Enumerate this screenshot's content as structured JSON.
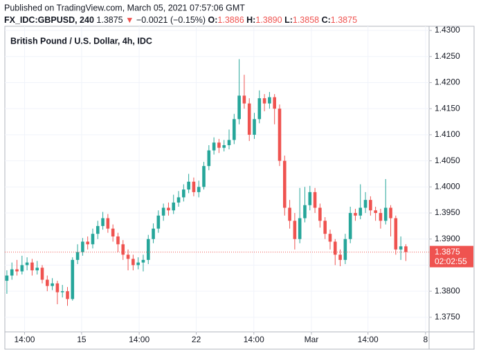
{
  "header": {
    "published": "Published on TradingView.com, March 05, 2021 07:57:06 GMT",
    "symbol": "FX_IDC:GBPUSD, 240",
    "last": "1.3875",
    "arrow": "▼",
    "change": "−0.0021 (−0.15%)",
    "o_label": "O:",
    "o": "1.3886",
    "h_label": "H:",
    "h": "1.3890",
    "l_label": "L:",
    "l": "1.3858",
    "c_label": "C:",
    "c": "1.3875"
  },
  "chart_data": {
    "type": "candlestick",
    "title": "British Pound / U.S. Dollar, 4h, IDC",
    "up_color": "#26a69a",
    "down_color": "#ef5350",
    "xlim": [
      -0.4,
      83.6
    ],
    "xticks": [
      {
        "value": 3.5,
        "label": "14:00"
      },
      {
        "value": 14.8,
        "label": "15"
      },
      {
        "value": 26.2,
        "label": "14:00"
      },
      {
        "value": 37.5,
        "label": "22"
      },
      {
        "value": 48.9,
        "label": "14:00"
      },
      {
        "value": 60.3,
        "label": "Mar"
      },
      {
        "value": 71.5,
        "label": "14:00"
      },
      {
        "value": 82.9,
        "label": "8"
      }
    ],
    "ylim": [
      1.3722,
      1.4308
    ],
    "yticks": [
      {
        "value": 1.375,
        "label": "1.3750"
      },
      {
        "value": 1.38,
        "label": "1.3800"
      },
      {
        "value": 1.385,
        "label": "1.3850"
      },
      {
        "value": 1.39,
        "label": "1.3900"
      },
      {
        "value": 1.395,
        "label": "1.3950"
      },
      {
        "value": 1.4,
        "label": "1.4000"
      },
      {
        "value": 1.405,
        "label": "1.4050"
      },
      {
        "value": 1.41,
        "label": "1.4100"
      },
      {
        "value": 1.415,
        "label": "1.4150"
      },
      {
        "value": 1.42,
        "label": "1.4200"
      },
      {
        "value": 1.425,
        "label": "1.4250"
      },
      {
        "value": 1.43,
        "label": "1.4300"
      }
    ],
    "grid": true,
    "current_price": {
      "value": 1.3875,
      "label": "1.3875",
      "countdown": "02:02:55",
      "color": "#ef5350"
    },
    "open": [
      1.382,
      1.383,
      1.3842,
      1.3838,
      1.385,
      1.3855,
      1.384,
      1.3845,
      1.3822,
      1.381,
      1.3815,
      1.3798,
      1.38,
      1.3785,
      1.386,
      1.3875,
      1.3895,
      1.389,
      1.391,
      1.3925,
      1.394,
      1.392,
      1.3905,
      1.389,
      1.387,
      1.3862,
      1.385,
      1.3855,
      1.386,
      1.39,
      1.392,
      1.3945,
      1.396,
      1.3955,
      1.397,
      1.398,
      1.3995,
      1.401,
      1.399,
      1.4,
      1.404,
      1.407,
      1.4085,
      1.4075,
      1.408,
      1.409,
      1.413,
      1.4175,
      1.416,
      1.41,
      1.413,
      1.417,
      1.416,
      1.4172,
      1.415,
      1.405,
      1.396,
      1.3935,
      1.39,
      1.394,
      1.3965,
      1.399,
      1.396,
      1.3935,
      1.391,
      1.3895,
      1.387,
      1.386,
      1.39,
      1.395,
      1.3945,
      1.396,
      1.3975,
      1.3955,
      1.395,
      1.3935,
      1.396,
      1.394,
      1.388,
      1.3886
    ],
    "high": [
      1.384,
      1.3855,
      1.386,
      1.3868,
      1.3865,
      1.3862,
      1.3858,
      1.385,
      1.383,
      1.3825,
      1.382,
      1.3812,
      1.3808,
      1.3865,
      1.389,
      1.3902,
      1.3905,
      1.392,
      1.3935,
      1.3952,
      1.3948,
      1.3928,
      1.3912,
      1.3898,
      1.388,
      1.387,
      1.3865,
      1.387,
      1.3908,
      1.393,
      1.3955,
      1.3968,
      1.397,
      1.3985,
      1.3992,
      1.4005,
      1.4025,
      1.4018,
      1.4012,
      1.4048,
      1.408,
      1.4095,
      1.4092,
      1.409,
      1.411,
      1.414,
      1.4245,
      1.4215,
      1.417,
      1.4142,
      1.4185,
      1.4178,
      1.4182,
      1.4178,
      1.4158,
      1.406,
      1.3975,
      1.395,
      1.3998,
      1.4,
      1.4002,
      1.3998,
      1.3968,
      1.3942,
      1.3918,
      1.39,
      1.388,
      1.391,
      1.3962,
      1.3958,
      1.4005,
      1.399,
      1.3982,
      1.3962,
      1.3958,
      1.4015,
      1.3965,
      1.3945,
      1.3905,
      1.389
    ],
    "low": [
      1.3795,
      1.3822,
      1.383,
      1.3832,
      1.384,
      1.383,
      1.3832,
      1.3815,
      1.38,
      1.3802,
      1.3775,
      1.3788,
      1.3772,
      1.3782,
      1.3852,
      1.3868,
      1.388,
      1.3882,
      1.39,
      1.3918,
      1.3912,
      1.3895,
      1.3875,
      1.386,
      1.384,
      1.384,
      1.3842,
      1.3838,
      1.3852,
      1.3892,
      1.3912,
      1.3935,
      1.3945,
      1.3948,
      1.3962,
      1.3972,
      1.3988,
      1.3982,
      1.398,
      1.3995,
      1.4032,
      1.4062,
      1.4065,
      1.4068,
      1.4072,
      1.4082,
      1.412,
      1.415,
      1.4088,
      1.4092,
      1.4122,
      1.4145,
      1.415,
      1.412,
      1.404,
      1.3945,
      1.392,
      1.388,
      1.3892,
      1.3932,
      1.3955,
      1.395,
      1.3922,
      1.39,
      1.388,
      1.385,
      1.3848,
      1.3852,
      1.3892,
      1.3935,
      1.3938,
      1.395,
      1.3945,
      1.3935,
      1.392,
      1.3928,
      1.3905,
      1.387,
      1.386,
      1.3858
    ],
    "close": [
      1.383,
      1.3842,
      1.3838,
      1.385,
      1.3855,
      1.384,
      1.3845,
      1.3822,
      1.381,
      1.3815,
      1.3798,
      1.38,
      1.3785,
      1.386,
      1.3875,
      1.3895,
      1.389,
      1.391,
      1.3925,
      1.394,
      1.392,
      1.3905,
      1.389,
      1.387,
      1.3862,
      1.385,
      1.3855,
      1.386,
      1.39,
      1.392,
      1.3945,
      1.396,
      1.3955,
      1.397,
      1.398,
      1.3995,
      1.401,
      1.399,
      1.4,
      1.404,
      1.407,
      1.4085,
      1.4075,
      1.408,
      1.409,
      1.413,
      1.4175,
      1.416,
      1.41,
      1.413,
      1.417,
      1.416,
      1.4172,
      1.415,
      1.405,
      1.396,
      1.3935,
      1.39,
      1.394,
      1.3965,
      1.399,
      1.396,
      1.3935,
      1.391,
      1.3895,
      1.387,
      1.386,
      1.39,
      1.395,
      1.3945,
      1.396,
      1.3975,
      1.3955,
      1.395,
      1.3935,
      1.396,
      1.394,
      1.388,
      1.3886,
      1.3875
    ]
  }
}
